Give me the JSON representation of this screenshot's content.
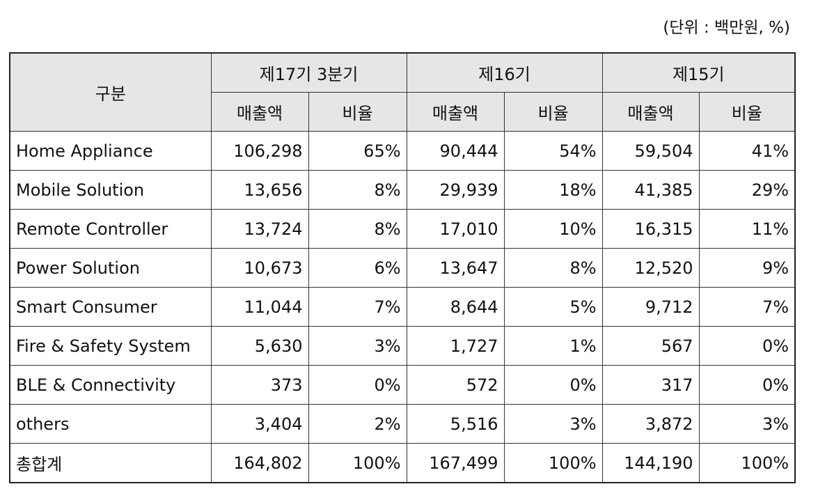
{
  "unit_note": "(단위 : 백만원, %)",
  "table": {
    "header": {
      "category": "구분",
      "periods": [
        "제17기 3분기",
        "제16기",
        "제15기"
      ],
      "sales_label": "매출액",
      "ratio_label": "비율"
    },
    "rows": [
      {
        "name": "Home Appliance",
        "values": [
          "106,298",
          "65%",
          "90,444",
          "54%",
          "59,504",
          "41%"
        ]
      },
      {
        "name": "Mobile Solution",
        "values": [
          "13,656",
          "8%",
          "29,939",
          "18%",
          "41,385",
          "29%"
        ]
      },
      {
        "name": "Remote Controller",
        "values": [
          "13,724",
          "8%",
          "17,010",
          "10%",
          "16,315",
          "11%"
        ]
      },
      {
        "name": "Power Solution",
        "values": [
          "10,673",
          "6%",
          "13,647",
          "8%",
          "12,520",
          "9%"
        ]
      },
      {
        "name": "Smart Consumer",
        "values": [
          "11,044",
          "7%",
          "8,644",
          "5%",
          "9,712",
          "7%"
        ]
      },
      {
        "name": "Fire & Safety System",
        "values": [
          "5,630",
          "3%",
          "1,727",
          "1%",
          "567",
          "0%"
        ]
      },
      {
        "name": "BLE & Connectivity",
        "values": [
          "373",
          "0%",
          "572",
          "0%",
          "317",
          "0%"
        ]
      },
      {
        "name": "others",
        "values": [
          "3,404",
          "2%",
          "5,516",
          "3%",
          "3,872",
          "3%"
        ]
      },
      {
        "name": "총합계",
        "values": [
          "164,802",
          "100%",
          "167,499",
          "100%",
          "144,190",
          "100%"
        ]
      }
    ]
  }
}
